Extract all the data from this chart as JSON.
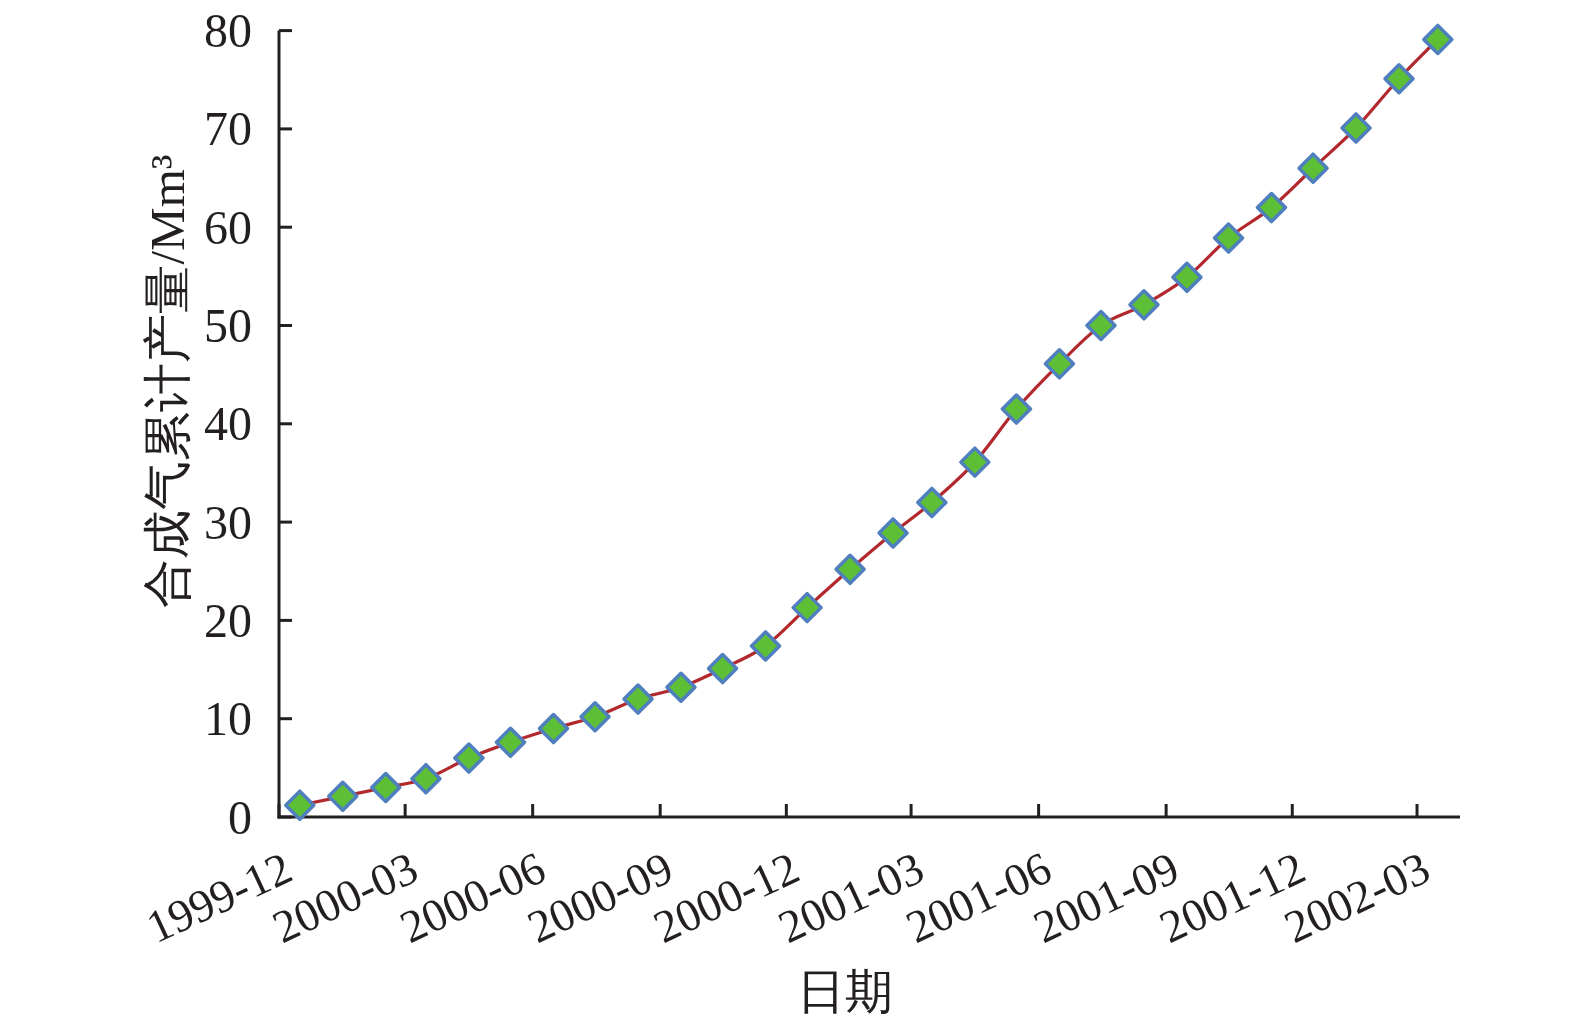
{
  "chart_data": {
    "type": "line",
    "xlabel": "日期",
    "ylabel": "合成气累计产量/Mm³",
    "x": [
      "1999-12-16",
      "2000-01-16",
      "2000-02-16",
      "2000-03-16",
      "2000-04-16",
      "2000-05-16",
      "2000-06-16",
      "2000-07-16",
      "2000-08-16",
      "2000-09-16",
      "2000-10-16",
      "2000-11-16",
      "2000-12-16",
      "2001-01-16",
      "2001-02-16",
      "2001-03-16",
      "2001-04-16",
      "2001-05-16",
      "2001-06-16",
      "2001-07-16",
      "2001-08-16",
      "2001-09-16",
      "2001-10-16",
      "2001-11-16",
      "2001-12-16",
      "2002-01-16",
      "2002-02-16",
      "2002-03-16"
    ],
    "series": [
      {
        "color": "#b3282d",
        "values": [
          1.2,
          2.1,
          3.0,
          3.9,
          6.0,
          7.6,
          9.0,
          10.2,
          12.0,
          13.2,
          15.1,
          17.4,
          21.3,
          25.2,
          28.9,
          32.0,
          36.1,
          41.5,
          46.1,
          50.0,
          52.1,
          54.9,
          58.9,
          62.0,
          66.0,
          70.1,
          75.1,
          79.1
        ]
      }
    ],
    "xlim": [
      "1999-12",
      "2002-04"
    ],
    "xticks": [
      "1999-12",
      "2000-03",
      "2000-06",
      "2000-09",
      "2000-12",
      "2001-03",
      "2001-06",
      "2001-09",
      "2001-12",
      "2002-03"
    ],
    "ylim": [
      0,
      80
    ],
    "yticks": [
      0,
      10,
      20,
      30,
      40,
      50,
      60,
      70,
      80
    ],
    "marker": "diamond",
    "line_style": "solid"
  }
}
